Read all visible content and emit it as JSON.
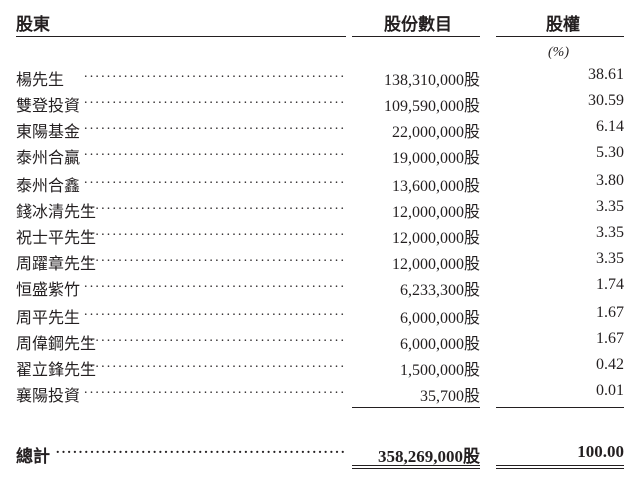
{
  "header": {
    "shareholder": "股東",
    "shares": "股份數目",
    "percent": "股權",
    "percent_unit": "(%)"
  },
  "dot_leader": "......................................................",
  "rows": [
    {
      "name": "楊先生",
      "shares": "138,310,000股",
      "percent": "38.61"
    },
    {
      "name": "雙登投資",
      "shares": "109,590,000股",
      "percent": "30.59"
    },
    {
      "name": "東陽基金",
      "shares": "22,000,000股",
      "percent": "6.14"
    },
    {
      "name": "泰州合贏",
      "shares": "19,000,000股",
      "percent": "5.30"
    },
    {
      "name": "泰州合鑫",
      "shares": "13,600,000股",
      "percent": "3.80"
    },
    {
      "name": "錢冰清先生",
      "shares": "12,000,000股",
      "percent": "3.35"
    },
    {
      "name": "祝士平先生",
      "shares": "12,000,000股",
      "percent": "3.35"
    },
    {
      "name": "周躍章先生",
      "shares": "12,000,000股",
      "percent": "3.35"
    },
    {
      "name": "恒盛紫竹",
      "shares": "6,233,300股",
      "percent": "1.74"
    },
    {
      "name": "周平先生",
      "shares": "6,000,000股",
      "percent": "1.67"
    },
    {
      "name": "周偉鋼先生",
      "shares": "6,000,000股",
      "percent": "1.67"
    },
    {
      "name": "翟立鋒先生",
      "shares": "1,500,000股",
      "percent": "0.42"
    },
    {
      "name": "襄陽投資",
      "shares": "35,700股",
      "percent": "0.01"
    }
  ],
  "total": {
    "name": "總計",
    "shares": "358,269,000股",
    "percent": "100.00"
  }
}
